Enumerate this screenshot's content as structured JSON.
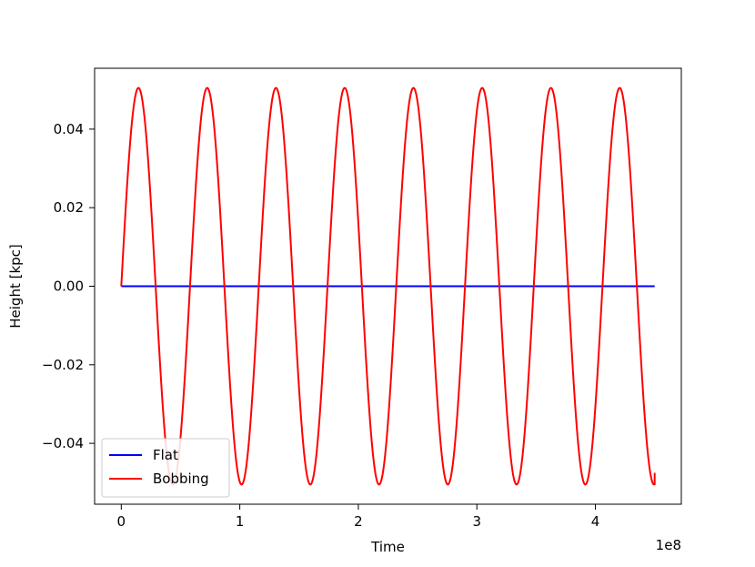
{
  "chart_data": {
    "type": "line",
    "xlabel": "Time",
    "ylabel": "Height [kpc]",
    "x_offset_text": "1e8",
    "xlim": [
      -0.225,
      4.725
    ],
    "ylim": [
      -0.0555,
      0.0555
    ],
    "xticks": [
      0,
      1,
      2,
      3,
      4
    ],
    "xtick_labels": [
      "0",
      "1",
      "2",
      "3",
      "4"
    ],
    "yticks": [
      -0.04,
      -0.02,
      0.0,
      0.02,
      0.04
    ],
    "ytick_labels": [
      "−0.04",
      "−0.02",
      "0.00",
      "0.02",
      "0.04"
    ],
    "grid": false,
    "legend_position": "lower-left",
    "series": [
      {
        "name": "Flat",
        "color": "#0000ff",
        "x": [
          0,
          4.5
        ],
        "y": [
          0.0,
          0.0
        ]
      },
      {
        "name": "Bobbing",
        "color": "#ff0000",
        "amplitude": 0.0505,
        "period": 0.58,
        "x_start": 0,
        "x_end": 4.5,
        "last_y": -0.0475
      }
    ]
  }
}
